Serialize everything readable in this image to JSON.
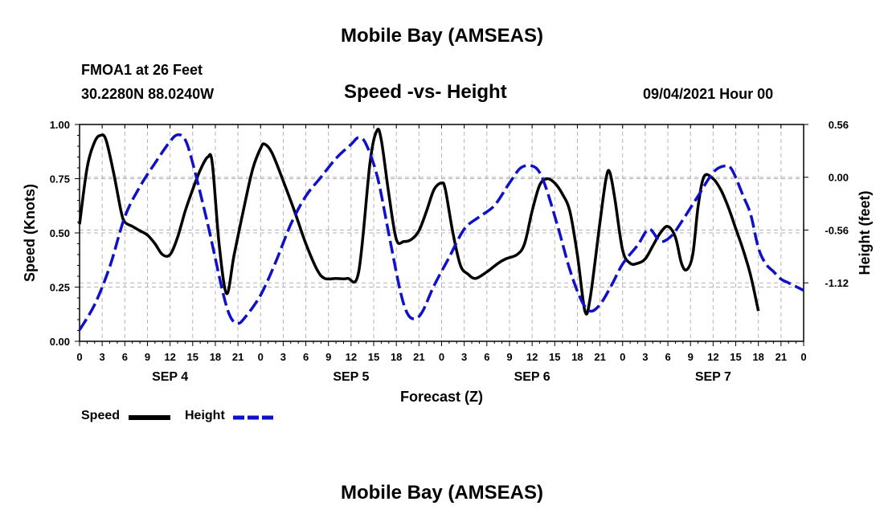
{
  "header": {
    "title": "Mobile Bay (AMSEAS)",
    "station": "FMOA1 at 26 Feet",
    "location": "30.2280N  88.0240W",
    "subtitle": "Speed -vs- Height",
    "run_time": "09/04/2021 Hour 00"
  },
  "footer": {
    "title": "Mobile Bay (AMSEAS)"
  },
  "legend": {
    "speed_label": "Speed",
    "height_label": "Height"
  },
  "colors": {
    "speed": "#000000",
    "height": "#1010c8",
    "grid": "#b4b4b4"
  },
  "chart_data": {
    "type": "line",
    "title": "Speed -vs- Height",
    "xlabel": "Forecast (Z)",
    "ylabel": "Speed (Knots)",
    "y2label": "Height (feet)",
    "xlim": [
      0,
      96
    ],
    "ylim": [
      0,
      1
    ],
    "y2lim": [
      -1.74,
      0.56
    ],
    "x_tick_labels": [
      "0",
      "3",
      "6",
      "9",
      "12",
      "15",
      "18",
      "21",
      "0",
      "3",
      "6",
      "9",
      "12",
      "15",
      "18",
      "21",
      "0",
      "3",
      "6",
      "9",
      "12",
      "15",
      "18",
      "21",
      "0",
      "3",
      "6",
      "9",
      "12",
      "15",
      "18",
      "21",
      "0"
    ],
    "day_labels": [
      {
        "label": "SEP 4",
        "x": 12
      },
      {
        "label": "SEP 5",
        "x": 36
      },
      {
        "label": "SEP 6",
        "x": 60
      },
      {
        "label": "SEP 7",
        "x": 84
      }
    ],
    "y_tick_labels": [
      "0.00",
      "0.25",
      "0.50",
      "0.75",
      "1.00"
    ],
    "y_ticks": [
      0,
      0.25,
      0.5,
      0.75,
      1.0
    ],
    "y2_tick_labels": [
      "0.56",
      "0.00",
      "-0.56",
      "-1.12"
    ],
    "y2_ticks": [
      0.56,
      0.0,
      -0.56,
      -1.12
    ],
    "series": [
      {
        "name": "Speed",
        "axis": "left",
        "style": "solid",
        "points": [
          [
            0,
            0.54
          ],
          [
            1,
            0.8
          ],
          [
            2,
            0.92
          ],
          [
            2.8,
            0.95
          ],
          [
            3.5,
            0.93
          ],
          [
            4.5,
            0.78
          ],
          [
            5.5,
            0.6
          ],
          [
            6,
            0.55
          ],
          [
            7,
            0.53
          ],
          [
            8,
            0.51
          ],
          [
            9,
            0.49
          ],
          [
            10,
            0.45
          ],
          [
            11,
            0.4
          ],
          [
            12,
            0.4
          ],
          [
            13,
            0.48
          ],
          [
            14,
            0.6
          ],
          [
            15,
            0.7
          ],
          [
            16,
            0.79
          ],
          [
            17,
            0.85
          ],
          [
            17.6,
            0.82
          ],
          [
            18.5,
            0.45
          ],
          [
            19.5,
            0.22
          ],
          [
            20.5,
            0.4
          ],
          [
            22,
            0.65
          ],
          [
            23,
            0.8
          ],
          [
            24,
            0.89
          ],
          [
            24.5,
            0.91
          ],
          [
            25.5,
            0.87
          ],
          [
            27,
            0.74
          ],
          [
            28.5,
            0.6
          ],
          [
            30,
            0.45
          ],
          [
            31.5,
            0.33
          ],
          [
            32.5,
            0.29
          ],
          [
            34,
            0.29
          ],
          [
            35.5,
            0.29
          ],
          [
            37,
            0.32
          ],
          [
            38.5,
            0.82
          ],
          [
            39.4,
            0.97
          ],
          [
            40,
            0.93
          ],
          [
            41,
            0.68
          ],
          [
            42,
            0.47
          ],
          [
            43,
            0.46
          ],
          [
            44,
            0.47
          ],
          [
            45,
            0.51
          ],
          [
            46,
            0.6
          ],
          [
            47,
            0.7
          ],
          [
            48,
            0.73
          ],
          [
            48.5,
            0.7
          ],
          [
            49.5,
            0.5
          ],
          [
            50.5,
            0.35
          ],
          [
            51.5,
            0.31
          ],
          [
            52.5,
            0.29
          ],
          [
            54,
            0.32
          ],
          [
            55.5,
            0.36
          ],
          [
            56.5,
            0.38
          ],
          [
            58,
            0.4
          ],
          [
            59,
            0.45
          ],
          [
            60,
            0.6
          ],
          [
            61,
            0.72
          ],
          [
            62,
            0.75
          ],
          [
            63,
            0.73
          ],
          [
            64,
            0.68
          ],
          [
            65,
            0.6
          ],
          [
            66,
            0.4
          ],
          [
            67,
            0.14
          ],
          [
            67.7,
            0.2
          ],
          [
            69,
            0.55
          ],
          [
            69.8,
            0.75
          ],
          [
            70.3,
            0.78
          ],
          [
            71,
            0.65
          ],
          [
            72,
            0.42
          ],
          [
            73,
            0.36
          ],
          [
            74,
            0.36
          ],
          [
            75,
            0.38
          ],
          [
            76,
            0.44
          ],
          [
            77,
            0.5
          ],
          [
            78,
            0.53
          ],
          [
            79,
            0.48
          ],
          [
            79.8,
            0.36
          ],
          [
            80.5,
            0.33
          ],
          [
            81.3,
            0.4
          ],
          [
            82,
            0.62
          ],
          [
            82.8,
            0.76
          ],
          [
            84,
            0.75
          ],
          [
            85,
            0.7
          ],
          [
            86,
            0.62
          ],
          [
            87,
            0.52
          ],
          [
            88,
            0.42
          ],
          [
            89,
            0.3
          ],
          [
            90,
            0.14
          ]
        ]
      },
      {
        "name": "Height",
        "axis": "right",
        "style": "dashed",
        "points": [
          [
            0,
            -1.62
          ],
          [
            2,
            -1.35
          ],
          [
            4,
            -0.95
          ],
          [
            6,
            -0.42
          ],
          [
            8,
            -0.1
          ],
          [
            10,
            0.15
          ],
          [
            12,
            0.38
          ],
          [
            13,
            0.45
          ],
          [
            14,
            0.4
          ],
          [
            15,
            0.15
          ],
          [
            17,
            -0.5
          ],
          [
            19,
            -1.22
          ],
          [
            20,
            -1.48
          ],
          [
            21,
            -1.55
          ],
          [
            22,
            -1.48
          ],
          [
            24,
            -1.25
          ],
          [
            26,
            -0.9
          ],
          [
            28,
            -0.5
          ],
          [
            30,
            -0.2
          ],
          [
            32,
            0.0
          ],
          [
            34,
            0.2
          ],
          [
            36,
            0.35
          ],
          [
            37,
            0.42
          ],
          [
            38,
            0.35
          ],
          [
            39.5,
            0.0
          ],
          [
            41,
            -0.6
          ],
          [
            42.5,
            -1.2
          ],
          [
            43.5,
            -1.45
          ],
          [
            44.5,
            -1.5
          ],
          [
            45.5,
            -1.42
          ],
          [
            47,
            -1.15
          ],
          [
            49,
            -0.85
          ],
          [
            51,
            -0.55
          ],
          [
            53,
            -0.42
          ],
          [
            55,
            -0.3
          ],
          [
            57,
            -0.06
          ],
          [
            58.5,
            0.1
          ],
          [
            60,
            0.12
          ],
          [
            61,
            0.05
          ],
          [
            62,
            -0.15
          ],
          [
            63.5,
            -0.55
          ],
          [
            65,
            -0.98
          ],
          [
            66.5,
            -1.3
          ],
          [
            67.7,
            -1.42
          ],
          [
            69,
            -1.35
          ],
          [
            70.5,
            -1.15
          ],
          [
            72,
            -0.92
          ],
          [
            74,
            -0.72
          ],
          [
            75.5,
            -0.55
          ],
          [
            77,
            -0.68
          ],
          [
            78.5,
            -0.62
          ],
          [
            80,
            -0.45
          ],
          [
            82,
            -0.2
          ],
          [
            84,
            0.05
          ],
          [
            85.5,
            0.12
          ],
          [
            86.5,
            0.08
          ],
          [
            88,
            -0.2
          ],
          [
            89,
            -0.4
          ],
          [
            90,
            -0.75
          ],
          [
            91,
            -0.92
          ],
          [
            92,
            -1.0
          ],
          [
            93,
            -1.08
          ],
          [
            94,
            -1.12
          ],
          [
            96,
            -1.2
          ]
        ]
      }
    ]
  }
}
